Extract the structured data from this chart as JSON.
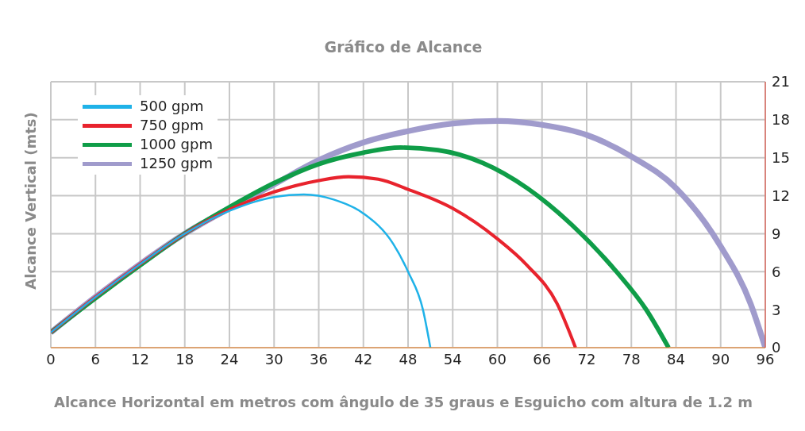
{
  "chart_data": {
    "type": "line",
    "title": "Gráfico de Alcance",
    "xlabel": "Alcance Horizontal em metros com ângulo de 35 graus e Esguicho com altura de 1.2 m",
    "ylabel": "Alcance Vertical (mts)",
    "xlim": [
      0,
      96
    ],
    "xticks": [
      0,
      6,
      12,
      18,
      24,
      30,
      36,
      42,
      48,
      54,
      60,
      66,
      72,
      78,
      84,
      90,
      96
    ],
    "ylim": [
      0,
      21
    ],
    "yticks": [
      0,
      3,
      6,
      9,
      12,
      15,
      18,
      21
    ],
    "grid": true,
    "legend": "top left",
    "marker": "none",
    "line_style": "solid",
    "series": [
      {
        "name": "500 gpm",
        "color": "#1fb2e8",
        "x": [
          0,
          6,
          12,
          18,
          24,
          30,
          34,
          38,
          42,
          46,
          48,
          50,
          51
        ],
        "values": [
          1.2,
          4,
          6.6,
          9,
          10.8,
          11.9,
          12.1,
          11.7,
          10.6,
          8.2,
          6,
          3,
          0
        ]
      },
      {
        "name": "750 gpm",
        "color": "#e8232d",
        "x": [
          0,
          6,
          12,
          18,
          24,
          30,
          36,
          40,
          44,
          48,
          54,
          60,
          64,
          68,
          70.5
        ],
        "values": [
          1.2,
          4,
          6.6,
          9,
          10.9,
          12.3,
          13.2,
          13.5,
          13.3,
          12.5,
          11,
          8.6,
          6.5,
          3.5,
          0
        ]
      },
      {
        "name": "1000 gpm",
        "color": "#0f9d48",
        "x": [
          0,
          6,
          12,
          18,
          24,
          30,
          36,
          42,
          47,
          52,
          58,
          64,
          70,
          76,
          80,
          83
        ],
        "values": [
          1.2,
          3.9,
          6.5,
          9,
          11.1,
          13,
          14.5,
          15.4,
          15.8,
          15.6,
          14.6,
          12.6,
          9.7,
          6,
          3,
          0
        ]
      },
      {
        "name": "1250 gpm",
        "color": "#a09bcc",
        "x": [
          0,
          6,
          12,
          18,
          24,
          30,
          36,
          42,
          48,
          54,
          60,
          66,
          72,
          78,
          84,
          90,
          94,
          96
        ],
        "values": [
          1.2,
          4,
          6.6,
          9,
          11,
          12.9,
          14.8,
          16.2,
          17.1,
          17.7,
          17.9,
          17.6,
          16.8,
          15.1,
          12.6,
          8,
          3.5,
          0
        ]
      }
    ]
  }
}
